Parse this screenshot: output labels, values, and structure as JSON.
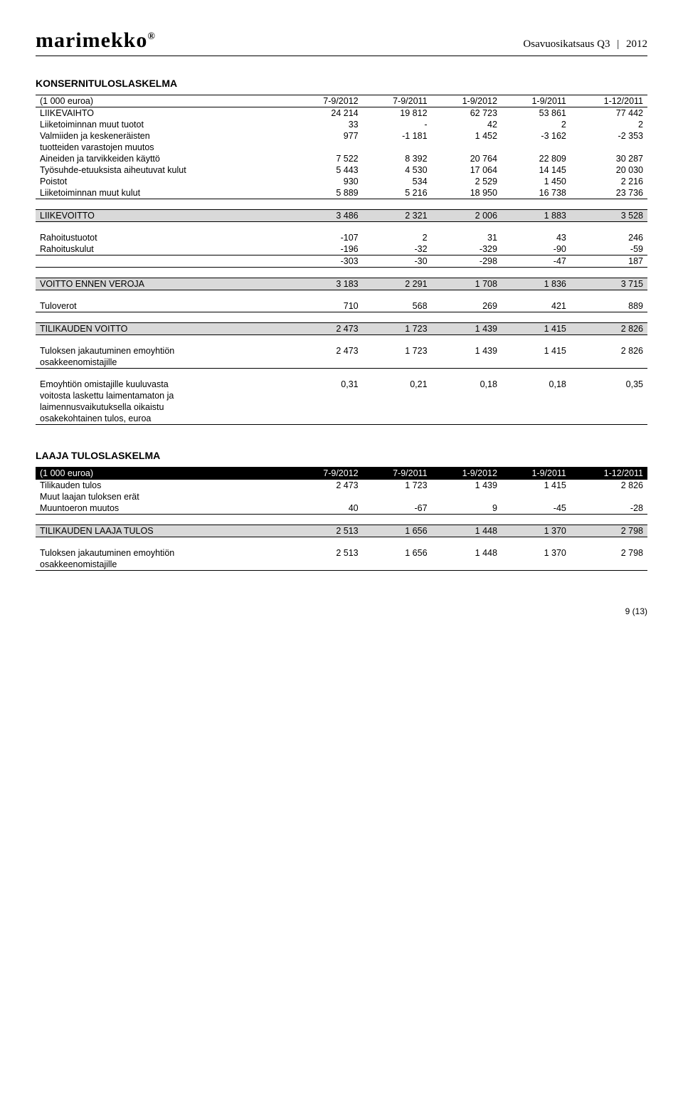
{
  "header": {
    "logo": "marimekko",
    "logo_symbol": "®",
    "right_text_a": "Osavuosikatsaus Q3",
    "right_text_b": "2012"
  },
  "section1": {
    "title": "KONSERNITULOSLASKELMA",
    "columns": [
      "(1 000 euroa)",
      "7-9/2012",
      "7-9/2011",
      "1-9/2012",
      "1-9/2011",
      "1-12/2011"
    ],
    "rows": [
      {
        "label": "LIIKEVAIHTO",
        "c": [
          "24 214",
          "19 812",
          "62 723",
          "53 861",
          "77 442"
        ]
      },
      {
        "label": "Liiketoiminnan muut tuotot",
        "c": [
          "33",
          "-",
          "42",
          "2",
          "2"
        ]
      },
      {
        "label": "Valmiiden ja keskeneräisten",
        "c": [
          "977",
          "-1 181",
          "1 452",
          "-3 162",
          "-2 353"
        ]
      },
      {
        "label": "tuotteiden varastojen muutos",
        "c": [
          "",
          "",
          "",
          "",
          ""
        ]
      },
      {
        "label": "Aineiden ja tarvikkeiden käyttö",
        "c": [
          "7 522",
          "8 392",
          "20 764",
          "22 809",
          "30 287"
        ]
      },
      {
        "label": "Työsuhde-etuuksista aiheutuvat kulut",
        "c": [
          "5 443",
          "4 530",
          "17 064",
          "14 145",
          "20 030"
        ]
      },
      {
        "label": "Poistot",
        "c": [
          "930",
          "534",
          "2 529",
          "1 450",
          "2 216"
        ]
      },
      {
        "label": "Liiketoiminnan muut kulut",
        "c": [
          "5 889",
          "5 216",
          "18 950",
          "16 738",
          "23 736"
        ],
        "underline": true
      }
    ],
    "liikevoitto": {
      "label": "LIIKEVOITTO",
      "c": [
        "3 486",
        "2 321",
        "2 006",
        "1 883",
        "3 528"
      ]
    },
    "rahoitus": [
      {
        "label": "Rahoitustuotot",
        "c": [
          "-107",
          "2",
          "31",
          "43",
          "246"
        ]
      },
      {
        "label": "Rahoituskulut",
        "c": [
          "-196",
          "-32",
          "-329",
          "-90",
          "-59"
        ],
        "underline": true
      },
      {
        "label": "",
        "c": [
          "-303",
          "-30",
          "-298",
          "-47",
          "187"
        ],
        "underline": true
      }
    ],
    "voitto_ennen": {
      "label": "VOITTO ENNEN VEROJA",
      "c": [
        "3 183",
        "2 291",
        "1 708",
        "1 836",
        "3 715"
      ]
    },
    "tuloverot": {
      "label": "Tuloverot",
      "c": [
        "710",
        "568",
        "269",
        "421",
        "889"
      ]
    },
    "tilikauden_voitto": {
      "label": "TILIKAUDEN VOITTO",
      "c": [
        "2 473",
        "1 723",
        "1 439",
        "1 415",
        "2 826"
      ]
    },
    "jakautuminen": {
      "label": "Tuloksen jakautuminen emoyhtiön",
      "sublabel": "osakkeenomistajille",
      "c": [
        "2 473",
        "1 723",
        "1 439",
        "1 415",
        "2 826"
      ]
    },
    "eps": {
      "label1": "Emoyhtiön omistajille kuuluvasta",
      "label2": "voitosta laskettu laimentamaton ja",
      "label3": "laimennusvaikutuksella oikaistu",
      "label4": "osakekohtainen tulos, euroa",
      "c": [
        "0,31",
        "0,21",
        "0,18",
        "0,18",
        "0,35"
      ]
    }
  },
  "section2": {
    "title": "LAAJA TULOSLASKELMA",
    "columns": [
      "(1 000 euroa)",
      "7-9/2012",
      "7-9/2011",
      "1-9/2012",
      "1-9/2011",
      "1-12/2011"
    ],
    "rows": [
      {
        "label": "Tilikauden tulos",
        "c": [
          "2 473",
          "1 723",
          "1 439",
          "1 415",
          "2 826"
        ]
      },
      {
        "label": "Muut laajan tuloksen erät",
        "c": [
          "",
          "",
          "",
          "",
          ""
        ]
      },
      {
        "label": "  Muuntoeron muutos",
        "c": [
          "40",
          "-67",
          "9",
          "-45",
          "-28"
        ],
        "underline": true
      }
    ],
    "laaja_tulos": {
      "label": "TILIKAUDEN LAAJA TULOS",
      "c": [
        "2 513",
        "1 656",
        "1 448",
        "1 370",
        "2 798"
      ]
    },
    "jakautuminen": {
      "label": "Tuloksen jakautuminen emoyhtiön",
      "sublabel": "osakkeenomistajille",
      "c": [
        "2 513",
        "1 656",
        "1 448",
        "1 370",
        "2 798"
      ]
    }
  },
  "page_number": "9 (13)",
  "style": {
    "background_color": "#ffffff",
    "text_color": "#000000",
    "shaded_row_bg": "#d9d9d9",
    "header_dark_bg": "#000000",
    "header_dark_fg": "#ffffff",
    "font_size_body": 13,
    "font_size_table": 12.5,
    "font_size_title": 14,
    "font_size_logo": 30,
    "col_count": 6,
    "col_widths_pct": [
      42,
      11.6,
      11.6,
      11.6,
      11.6,
      11.6
    ]
  }
}
